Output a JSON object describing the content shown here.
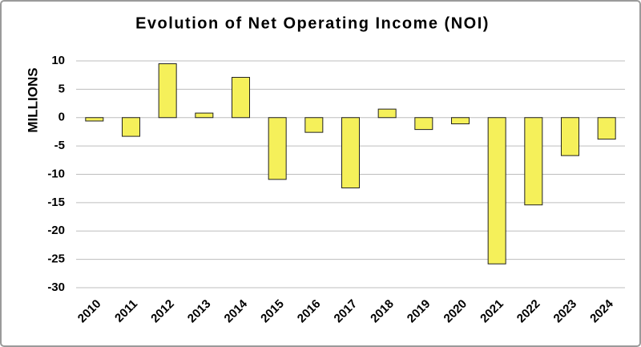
{
  "chart_data": {
    "type": "bar",
    "title": "Evolution of Net Operating Income (NOI)",
    "y_label": "MILLIONS",
    "categories": [
      "2010",
      "2011",
      "2012",
      "2013",
      "2014",
      "2015",
      "2016",
      "2017",
      "2018",
      "2019",
      "2020",
      "2021",
      "2022",
      "2023",
      "2024"
    ],
    "values": [
      -0.6,
      -3.3,
      9.5,
      0.8,
      7.1,
      -10.9,
      -2.6,
      -12.4,
      1.5,
      -2.1,
      -1.1,
      -25.8,
      -15.4,
      -6.7,
      -3.8
    ],
    "color": "#f5f05a",
    "ylim": [
      -30,
      10
    ],
    "yticks": [
      -30,
      -25,
      -20,
      -15,
      -10,
      -5,
      0,
      5,
      10
    ],
    "grid": true
  }
}
